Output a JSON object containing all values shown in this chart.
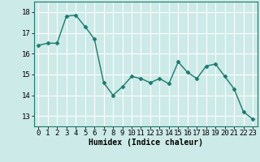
{
  "x": [
    0,
    1,
    2,
    3,
    4,
    5,
    6,
    7,
    8,
    9,
    10,
    11,
    12,
    13,
    14,
    15,
    16,
    17,
    18,
    19,
    20,
    21,
    22,
    23
  ],
  "y": [
    16.4,
    16.5,
    16.5,
    17.8,
    17.85,
    17.3,
    16.7,
    14.6,
    14.0,
    14.4,
    14.9,
    14.8,
    14.6,
    14.8,
    14.55,
    15.6,
    15.1,
    14.8,
    15.4,
    15.5,
    14.9,
    14.3,
    13.2,
    12.85
  ],
  "line_color": "#1a7a6e",
  "marker": "D",
  "marker_size": 2.5,
  "bg_color": "#cceae7",
  "grid_color": "#ffffff",
  "xlabel": "Humidex (Indice chaleur)",
  "xlim": [
    -0.5,
    23.5
  ],
  "ylim": [
    12.5,
    18.5
  ],
  "yticks": [
    13,
    14,
    15,
    16,
    17,
    18
  ],
  "xticks": [
    0,
    1,
    2,
    3,
    4,
    5,
    6,
    7,
    8,
    9,
    10,
    11,
    12,
    13,
    14,
    15,
    16,
    17,
    18,
    19,
    20,
    21,
    22,
    23
  ],
  "xlabel_fontsize": 7,
  "tick_fontsize": 6.5,
  "line_width": 1.0
}
